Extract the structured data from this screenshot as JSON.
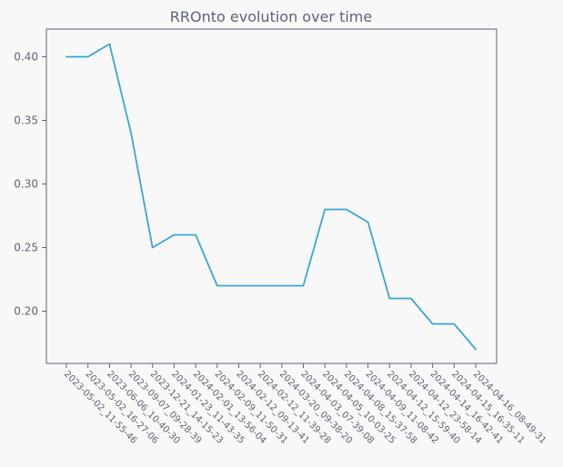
{
  "chart_data": {
    "type": "line",
    "title": "RROnto evolution over time",
    "xlabel": "",
    "ylabel": "",
    "ylim": [
      0.16,
      0.42
    ],
    "y_ticks": [
      0.2,
      0.25,
      0.3,
      0.35,
      0.4
    ],
    "y_tick_labels": [
      "0.20",
      "0.25",
      "0.30",
      "0.35",
      "0.40"
    ],
    "grid": false,
    "legend": "none",
    "categories": [
      "2023-05-02_11-55-46",
      "2023-05-02_16-27-06",
      "2023-06-06_10-40-30",
      "2023-09-07_09-28-39",
      "2023-12-21_14-15-23",
      "2024-01-23_11-43-35",
      "2024-02-01_13-56-04",
      "2024-02-09_11-50-31",
      "2024-02-12_09-13-41",
      "2024-02-12_11-39-28",
      "2024-03-20_09-38-20",
      "2024-04-03_07-39-08",
      "2024-04-05_10-03-25",
      "2024-04-08_15-37-58",
      "2024-04-09_11-08-42",
      "2024-04-12_15-59-40",
      "2024-04-12_23-58-14",
      "2024-04-14_16-42-41",
      "2024-04-15_16-35-11",
      "2024-04-16_08-49-31"
    ],
    "series": [
      {
        "color": "#38a6d6",
        "values": [
          0.4,
          0.4,
          0.41,
          0.34,
          0.25,
          0.26,
          0.26,
          0.22,
          0.22,
          0.22,
          0.22,
          0.22,
          0.28,
          0.28,
          0.27,
          0.21,
          0.21,
          0.19,
          0.19,
          0.17
        ]
      }
    ]
  }
}
